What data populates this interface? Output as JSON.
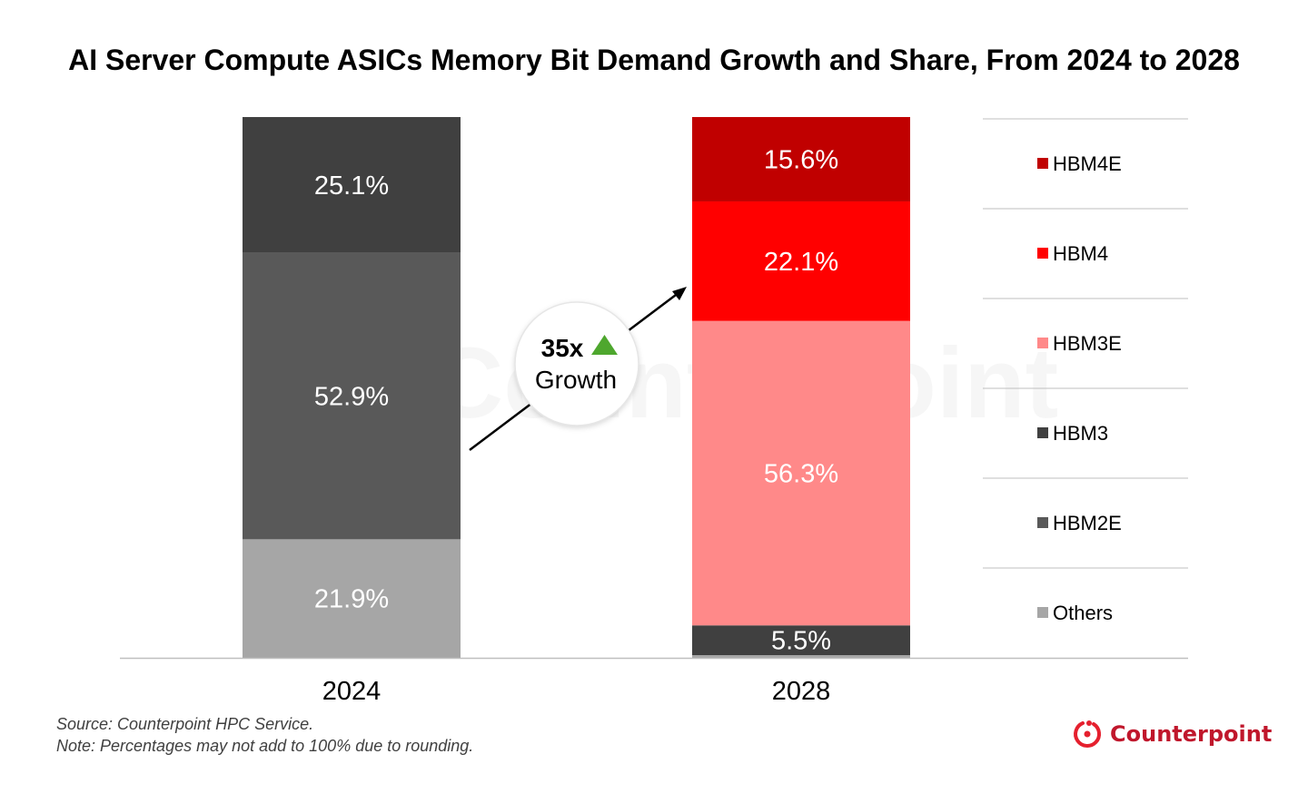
{
  "chart_data": {
    "type": "bar",
    "stacked": true,
    "title": "AI Server Compute ASICs Memory Bit Demand Growth and Share, From 2024 to 2028",
    "categories": [
      "2024",
      "2028"
    ],
    "unit": "%",
    "series": [
      {
        "name": "Others",
        "color": "#a6a6a6",
        "values": [
          21.9,
          0.5
        ],
        "labels": [
          "21.9%",
          null
        ]
      },
      {
        "name": "HBM2E",
        "color": "#595959",
        "values": [
          52.9,
          0
        ],
        "labels": [
          "52.9%",
          null
        ]
      },
      {
        "name": "HBM3",
        "color": "#404040",
        "values": [
          25.1,
          5.5
        ],
        "labels": [
          "25.1%",
          "5.5%"
        ]
      },
      {
        "name": "HBM3E",
        "color": "#ff8989",
        "values": [
          0,
          56.3
        ],
        "labels": [
          null,
          "56.3%"
        ]
      },
      {
        "name": "HBM4",
        "color": "#ff0000",
        "values": [
          0,
          22.1
        ],
        "labels": [
          null,
          "22.1%"
        ]
      },
      {
        "name": "HBM4E",
        "color": "#c00000",
        "values": [
          0,
          15.6
        ],
        "labels": [
          null,
          "15.6%"
        ]
      }
    ],
    "legend": {
      "placement": "right",
      "order": [
        "HBM4E",
        "HBM4",
        "HBM3E",
        "HBM3",
        "HBM2E",
        "Others"
      ]
    },
    "annotation": {
      "value": "35x",
      "text": "Growth",
      "icon": "up-triangle-icon",
      "icon_color": "#4ea72e"
    },
    "grid": false
  },
  "footer": {
    "source": "Source: Counterpoint HPC Service.",
    "note": "Note: Percentages may not add to 100% due to rounding."
  },
  "logo": {
    "text": "Counterpoint",
    "color": "#c0172c"
  },
  "watermark": "Counterpoint"
}
